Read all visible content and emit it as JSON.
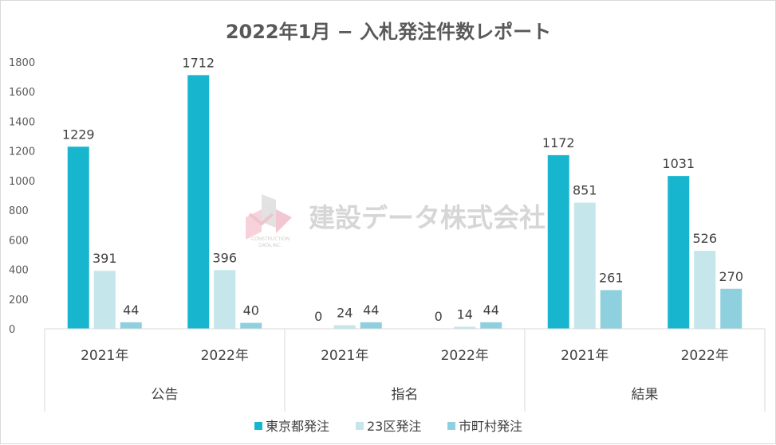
{
  "chart_data": {
    "type": "bar",
    "title": "2022年1月 − 入札発注件数レポート",
    "ylim": [
      0,
      1800
    ],
    "yticks": [
      0,
      200,
      400,
      600,
      800,
      1000,
      1200,
      1400,
      1600,
      1800
    ],
    "groups": [
      {
        "name": "公告",
        "categories": [
          "2021年",
          "2022年"
        ]
      },
      {
        "name": "指名",
        "categories": [
          "2021年",
          "2022年"
        ]
      },
      {
        "name": "結果",
        "categories": [
          "2021年",
          "2022年"
        ]
      }
    ],
    "series": [
      {
        "name": "東京都発注",
        "color": "#17b6ce",
        "values": [
          1229,
          1712,
          0,
          0,
          1172,
          1031
        ]
      },
      {
        "name": "23区発注",
        "color": "#c5e6ea",
        "values": [
          391,
          396,
          24,
          14,
          851,
          526
        ]
      },
      {
        "name": "市町村発注",
        "color": "#8fd0de",
        "values": [
          44,
          40,
          44,
          44,
          261,
          270
        ]
      }
    ],
    "grid": false,
    "legend_position": "bottom"
  },
  "watermark": {
    "text": "建設データ株式会社",
    "sub1": "CONSTRUCTION",
    "sub2": "DATA,INC."
  }
}
